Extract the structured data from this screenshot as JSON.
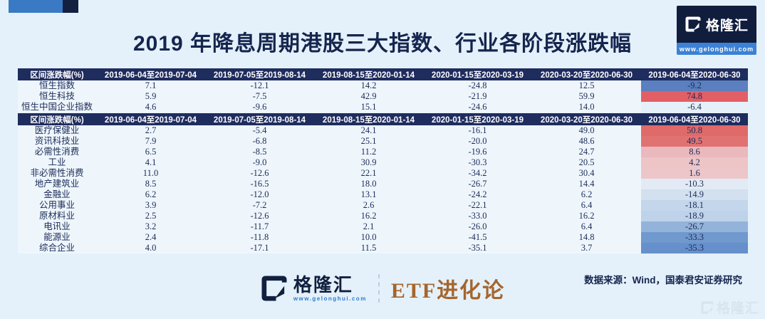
{
  "page": {
    "title": "2019 年降息周期港股三大指数、行业各阶段涨跌幅",
    "source_note": "数据来源：Wind，国泰君安证券研究"
  },
  "brand": {
    "name": "格隆汇",
    "url": "www.gelonghui.com",
    "partner": "ETF进化论",
    "watermark": "格隆汇"
  },
  "colors": {
    "page_bg": "#e4f1fa",
    "table_header_bg": "#1f2c5e",
    "table_header_text": "#ffffff",
    "body_text": "#1c2b57",
    "accent_blue": "#3a79c3",
    "accent_navy": "#13203f",
    "partner_text": "#a5652e",
    "positive_strong": "#e06a6a",
    "negative_strong": "#6690cb"
  },
  "chart_data": [
    {
      "type": "table",
      "corner_header": "区间涨跌幅(%)",
      "columns": [
        "2019-06-04至2019-07-04",
        "2019-07-05至2019-08-14",
        "2019-08-15至2020-01-14",
        "2020-01-15至2020-03-19",
        "2020-03-20至2020-06-30",
        "2019-06-04至2020-06-30"
      ],
      "rows": [
        {
          "label": "恒生指数",
          "values": [
            "7.1",
            "-12.1",
            "14.2",
            "-24.8",
            "12.5",
            "-9.2"
          ],
          "final_bg": "#5b7fbf"
        },
        {
          "label": "恒生科技",
          "values": [
            "5.9",
            "-7.5",
            "42.9",
            "-21.9",
            "59.9",
            "74.8"
          ],
          "final_bg": "#e25f66"
        },
        {
          "label": "恒生中国企业指数",
          "values": [
            "4.6",
            "-9.6",
            "15.1",
            "-24.6",
            "14.0",
            "-6.4"
          ],
          "final_bg": "#e6f0f9"
        }
      ]
    },
    {
      "type": "table",
      "corner_header": "区间涨跌幅(%)",
      "columns": [
        "2019-06-04至2019-07-04",
        "2019-07-05至2019-08-14",
        "2019-08-15至2020-01-14",
        "2020-01-15至2020-03-19",
        "2020-03-20至2020-06-30",
        "2019-06-04至2020-06-30"
      ],
      "rows": [
        {
          "label": "医疗保健业",
          "values": [
            "2.7",
            "-5.4",
            "24.1",
            "-16.1",
            "49.0",
            "50.8"
          ],
          "final_bg": "#e06a6a"
        },
        {
          "label": "资讯科技业",
          "values": [
            "7.9",
            "-6.8",
            "25.1",
            "-20.0",
            "48.6",
            "49.5"
          ],
          "final_bg": "#e17272"
        },
        {
          "label": "必需性消费",
          "values": [
            "6.5",
            "-8.5",
            "11.2",
            "-19.6",
            "24.7",
            "8.6"
          ],
          "final_bg": "#eab9bd"
        },
        {
          "label": "工业",
          "values": [
            "4.1",
            "-9.0",
            "30.9",
            "-30.3",
            "20.5",
            "4.2"
          ],
          "final_bg": "#edc5c7"
        },
        {
          "label": "非必需性消费",
          "values": [
            "11.0",
            "-12.6",
            "22.1",
            "-34.2",
            "30.4",
            "1.6"
          ],
          "final_bg": "#ecc6c9"
        },
        {
          "label": "地产建筑业",
          "values": [
            "8.5",
            "-16.5",
            "18.0",
            "-26.7",
            "14.4",
            "-10.3"
          ],
          "final_bg": "#e2ebf5"
        },
        {
          "label": "金融业",
          "values": [
            "6.2",
            "-12.0",
            "13.1",
            "-24.2",
            "6.2",
            "-14.9"
          ],
          "final_bg": "#d2e0ef"
        },
        {
          "label": "公用事业",
          "values": [
            "3.9",
            "-7.2",
            "2.6",
            "-22.1",
            "6.4",
            "-18.1"
          ],
          "final_bg": "#c3d6eb"
        },
        {
          "label": "原材料业",
          "values": [
            "2.5",
            "-12.6",
            "16.2",
            "-33.0",
            "16.2",
            "-18.9"
          ],
          "final_bg": "#bed2e9"
        },
        {
          "label": "电讯业",
          "values": [
            "3.2",
            "-11.7",
            "2.1",
            "-26.0",
            "6.4",
            "-26.7"
          ],
          "final_bg": "#93b3da"
        },
        {
          "label": "能源业",
          "values": [
            "2.4",
            "-11.8",
            "10.0",
            "-41.5",
            "14.8",
            "-33.3"
          ],
          "final_bg": "#7099ce"
        },
        {
          "label": "综合企业",
          "values": [
            "4.0",
            "-17.1",
            "11.5",
            "-35.1",
            "3.7",
            "-35.3"
          ],
          "final_bg": "#6690cb"
        }
      ]
    }
  ]
}
